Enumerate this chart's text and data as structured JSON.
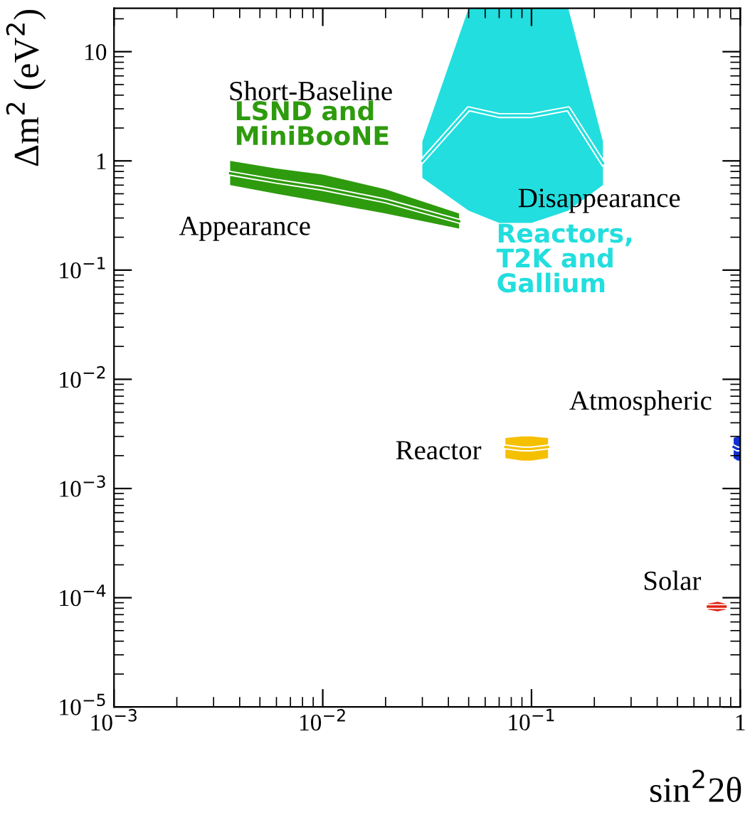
{
  "chart_data": {
    "type": "line",
    "xlabel": "sin$^{2}$2θ",
    "ylabel": "Δm$^{2}$ (eV$^{2}$)",
    "log": "xy",
    "xlim": [
      0.001,
      1
    ],
    "ylim": [
      1e-05,
      25
    ],
    "xticks": [
      {
        "value": 0.001,
        "label": "10$^{−3}$"
      },
      {
        "value": 0.01,
        "label": "10$^{−2}$"
      },
      {
        "value": 0.1,
        "label": "10$^{−1}$"
      },
      {
        "value": 1,
        "label": "1"
      }
    ],
    "yticks": [
      {
        "value": 1e-05,
        "label": "10$^{−5}$"
      },
      {
        "value": 0.0001,
        "label": "10$^{−4}$"
      },
      {
        "value": 0.001,
        "label": "10$^{−3}$"
      },
      {
        "value": 0.01,
        "label": "10$^{−2}$"
      },
      {
        "value": 0.1,
        "label": "10$^{−1}$"
      },
      {
        "value": 1,
        "label": "1"
      },
      {
        "value": 10,
        "label": "10"
      }
    ],
    "grid": false,
    "series": [
      {
        "name": "LSND and MiniBooNE",
        "color": "#2e9b0e",
        "x": [
          0.0036,
          0.006,
          0.01,
          0.02,
          0.045
        ],
        "values": [
          0.77,
          0.65,
          0.56,
          0.43,
          0.28
        ],
        "lower": [
          0.6,
          0.5,
          0.42,
          0.33,
          0.24
        ],
        "upper": [
          1.0,
          0.85,
          0.75,
          0.55,
          0.33
        ]
      },
      {
        "name": "Reactors, T2K and Gallium",
        "color": "#22dede",
        "x": [
          0.03,
          0.05,
          0.07,
          0.1,
          0.15,
          0.22
        ],
        "values": [
          1.0,
          3,
          2.6,
          2.6,
          3,
          0.95
        ],
        "lower": [
          0.7,
          0.35,
          0.27,
          0.27,
          0.35,
          0.6
        ],
        "upper": [
          1.5,
          25,
          25,
          25,
          25,
          1.5
        ]
      },
      {
        "color": "#f5c000",
        "x": [
          0.075,
          0.09,
          0.1,
          0.12
        ],
        "values": [
          0.0024,
          0.0023,
          0.0023,
          0.0024
        ],
        "lower": [
          0.0019,
          0.0018,
          0.0018,
          0.0019
        ],
        "upper": [
          0.0029,
          0.003,
          0.003,
          0.0029
        ]
      },
      {
        "color": "#1030d0",
        "x": [
          0.93,
          0.97,
          1.0
        ],
        "values": [
          0.0024,
          0.0023,
          0.0023
        ],
        "lower": [
          0.0019,
          0.0018,
          0.0018
        ],
        "upper": [
          0.0029,
          0.003,
          0.003
        ]
      },
      {
        "color": "#e02010",
        "x": [
          0.7,
          0.78,
          0.85
        ],
        "values": [
          8.3e-05,
          8.3e-05,
          8.3e-05
        ],
        "lower": [
          7.8e-05,
          7.5e-05,
          7.8e-05
        ],
        "upper": [
          8.8e-05,
          9.2e-05,
          8.8e-05
        ]
      }
    ],
    "annotations": [
      "Short-Baseline",
      "Appearance",
      "Disappearance",
      "Atmospheric",
      "Reactor",
      "Solar"
    ]
  }
}
